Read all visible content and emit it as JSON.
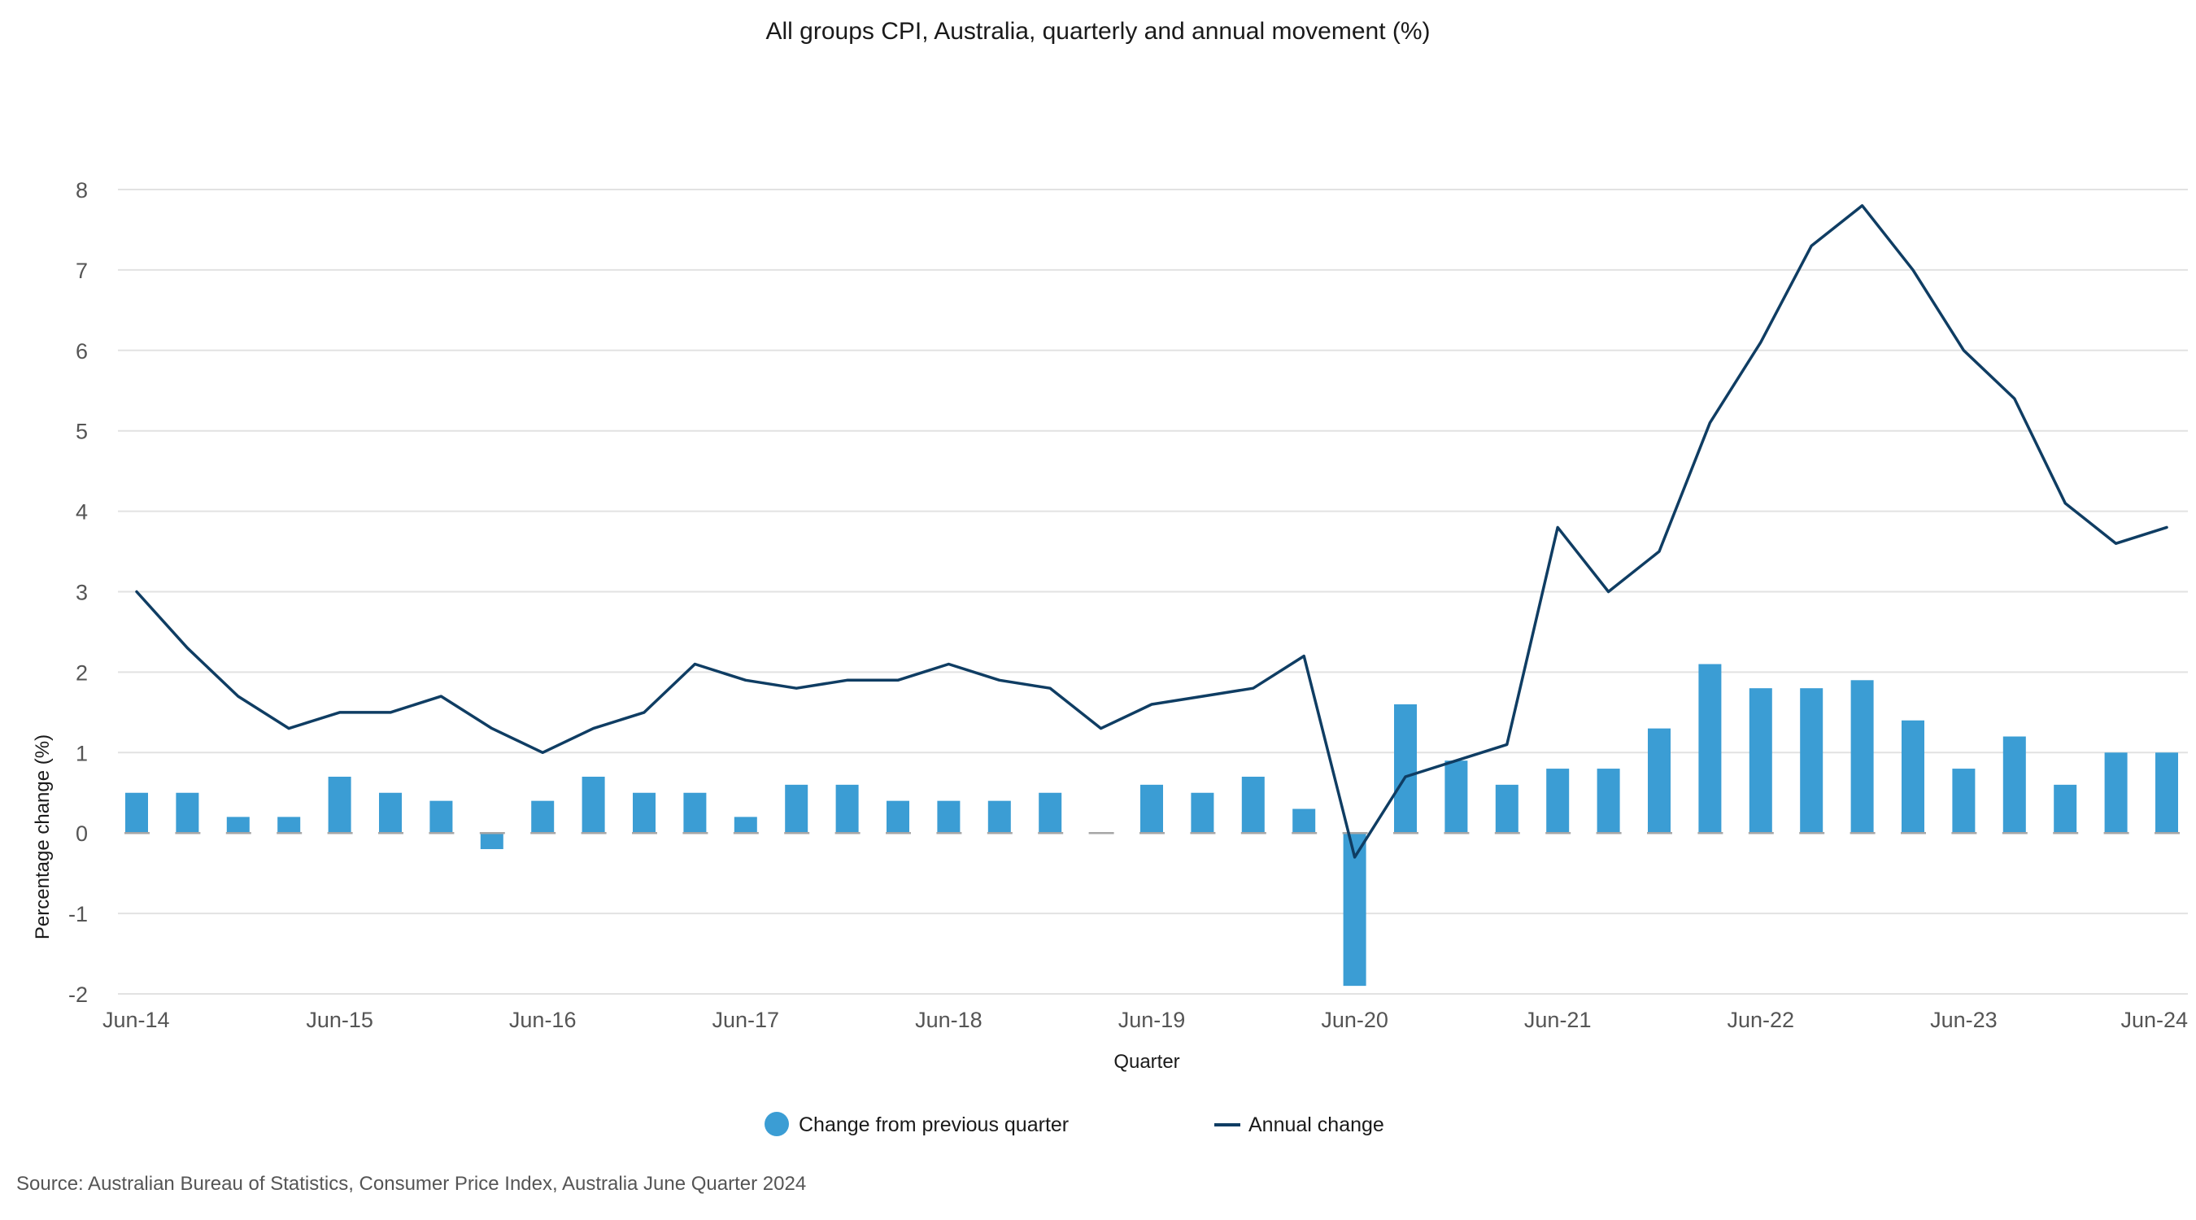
{
  "colors": {
    "bar": "#3b9dd4",
    "line": "#0f3d63",
    "grid": "#e2e2e2",
    "zero_line": "#a6a6a6"
  },
  "chart_data": {
    "type": "bar",
    "title": "All groups CPI, Australia, quarterly and annual movement (%)",
    "xlabel": "Quarter",
    "ylabel": "Percentage change (%)",
    "ylim": [
      -2,
      8
    ],
    "yticks": [
      "8",
      "7",
      "6",
      "5",
      "4",
      "3",
      "2",
      "1",
      "0",
      "-1",
      "-2"
    ],
    "grid": true,
    "legend_position": "bottom",
    "categories": [
      "Jun-14",
      "Sep-14",
      "Dec-14",
      "Mar-15",
      "Jun-15",
      "Sep-15",
      "Dec-15",
      "Mar-16",
      "Jun-16",
      "Sep-16",
      "Dec-16",
      "Mar-17",
      "Jun-17",
      "Sep-17",
      "Dec-17",
      "Mar-18",
      "Jun-18",
      "Sep-18",
      "Dec-18",
      "Mar-19",
      "Jun-19",
      "Sep-19",
      "Dec-19",
      "Mar-20",
      "Jun-20",
      "Sep-20",
      "Dec-20",
      "Mar-21",
      "Jun-21",
      "Sep-21",
      "Dec-21",
      "Mar-22",
      "Jun-22",
      "Sep-22",
      "Dec-22",
      "Mar-23",
      "Jun-23",
      "Sep-23",
      "Dec-23",
      "Mar-24",
      "Jun-24"
    ],
    "x_tick_labels": [
      "Jun-14",
      "Jun-15",
      "Jun-16",
      "Jun-17",
      "Jun-18",
      "Jun-19",
      "Jun-20",
      "Jun-21",
      "Jun-22",
      "Jun-23",
      "Jun-24"
    ],
    "series": [
      {
        "name": "Change from previous quarter",
        "type": "bar",
        "values": [
          0.5,
          0.5,
          0.2,
          0.2,
          0.7,
          0.5,
          0.4,
          -0.2,
          0.4,
          0.7,
          0.5,
          0.5,
          0.2,
          0.6,
          0.6,
          0.4,
          0.4,
          0.4,
          0.5,
          0.0,
          0.6,
          0.5,
          0.7,
          0.3,
          -1.9,
          1.6,
          0.9,
          0.6,
          0.8,
          0.8,
          1.3,
          2.1,
          1.8,
          1.8,
          1.9,
          1.4,
          0.8,
          1.2,
          0.6,
          1.0,
          1.0
        ]
      },
      {
        "name": "Annual change",
        "type": "line",
        "values": [
          3.0,
          2.3,
          1.7,
          1.3,
          1.5,
          1.5,
          1.7,
          1.3,
          1.0,
          1.3,
          1.5,
          2.1,
          1.9,
          1.8,
          1.9,
          1.9,
          2.1,
          1.9,
          1.8,
          1.3,
          1.6,
          1.7,
          1.8,
          2.2,
          -0.3,
          0.7,
          0.9,
          1.1,
          3.8,
          3.0,
          3.5,
          5.1,
          6.1,
          7.3,
          7.8,
          7.0,
          6.0,
          5.4,
          4.1,
          3.6,
          3.8
        ]
      }
    ]
  },
  "legend": {
    "bar_label": "Change from previous quarter",
    "line_label": "Annual change"
  },
  "source": "Source: Australian Bureau of Statistics, Consumer Price Index, Australia June Quarter 2024"
}
